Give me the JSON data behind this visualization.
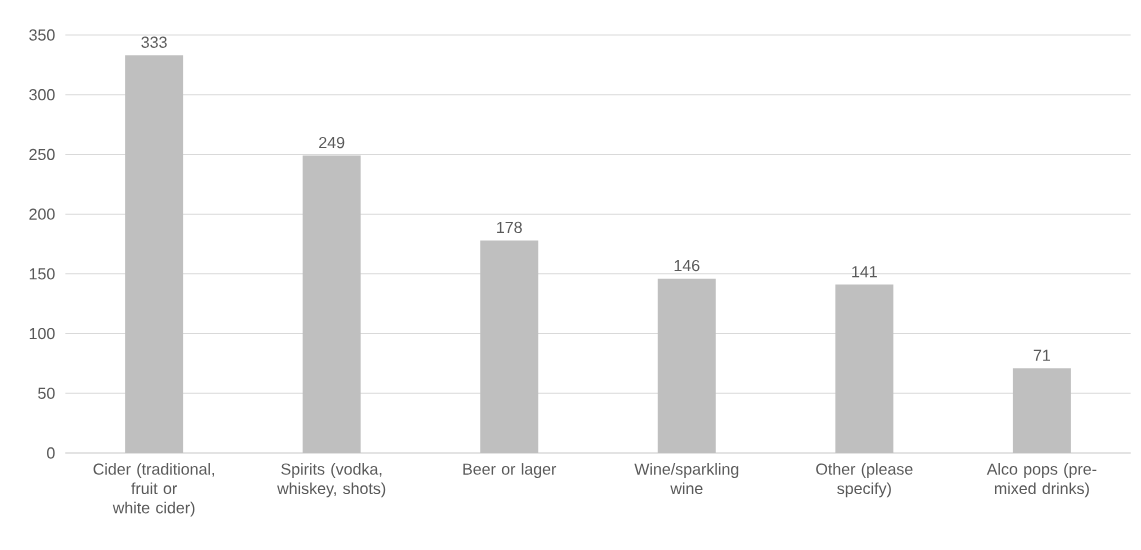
{
  "chart_data": {
    "type": "bar",
    "categories": [
      "Cider (traditional, fruit or white cider)",
      "Spirits (vodka, whiskey, shots)",
      "Beer or lager",
      "Wine/sparkling wine",
      "Other (please specify)",
      "Alco pops (pre-mixed drinks)"
    ],
    "values": [
      333,
      249,
      178,
      146,
      141,
      71
    ],
    "color": "#bfbfbf",
    "ylim": [
      0,
      350
    ],
    "yticks": [
      0,
      50,
      100,
      150,
      200,
      250,
      300,
      350
    ],
    "grid": "y",
    "data_labels": true
  }
}
